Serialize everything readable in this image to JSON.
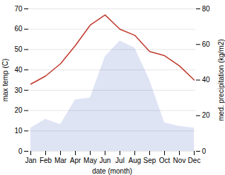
{
  "chart_data": {
    "type": "line",
    "xlabel": "date (month)",
    "ylabel": "max temp (C)",
    "y2label": "med. precipitation (kg/m2)",
    "categories": [
      "Jan",
      "Feb",
      "Mar",
      "Apr",
      "May",
      "Jun",
      "Jul",
      "Aug",
      "Sep",
      "Oct",
      "Nov",
      "Dec"
    ],
    "series": [
      {
        "type": "line",
        "color": "#c0392b",
        "values": [
          33,
          37,
          43,
          52,
          62,
          67,
          60,
          57,
          49,
          47,
          42,
          35
        ]
      },
      {
        "type": "area",
        "axis": "y2",
        "color": "#b8c4e8",
        "values": [
          13,
          18,
          15,
          29,
          30,
          53,
          62,
          58,
          40,
          16,
          14,
          13
        ]
      }
    ],
    "ylim": [
      0,
      70
    ],
    "yticks": [
      0,
      10,
      20,
      30,
      40,
      50,
      60,
      70
    ],
    "y2lim": [
      0,
      80
    ],
    "y2ticks": [
      0,
      20,
      40,
      60,
      80
    ],
    "grid": true
  }
}
